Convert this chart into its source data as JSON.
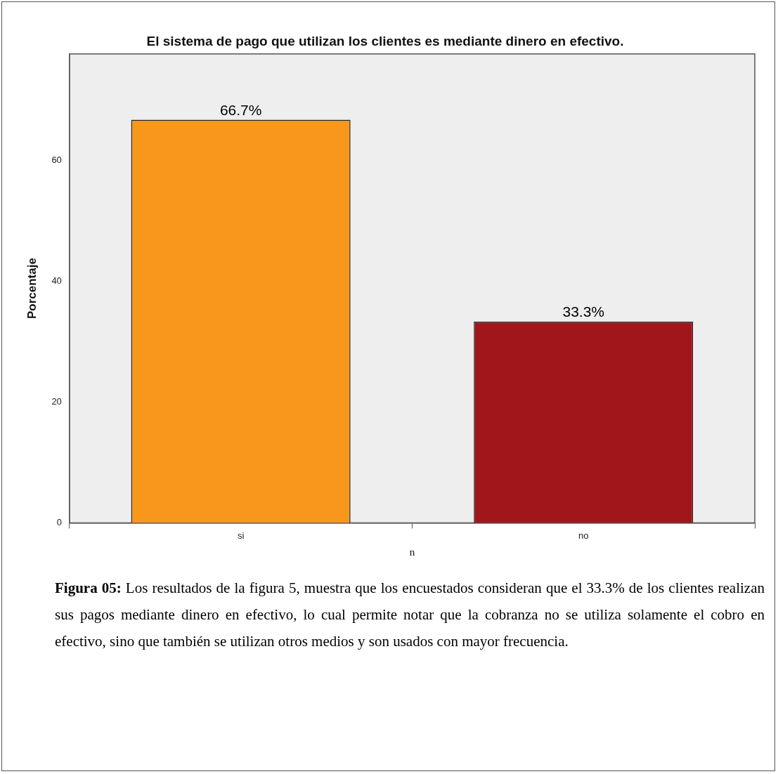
{
  "chart_data": {
    "type": "bar",
    "title": "El sistema de pago que utilizan los clientes es mediante dinero en efectivo.",
    "xlabel": "n",
    "ylabel": "Porcentaje",
    "categories": [
      "si",
      "no"
    ],
    "values": [
      66.7,
      33.3
    ],
    "colors": [
      "#f7981d",
      "#a0161b"
    ],
    "value_labels": [
      "66.7%",
      "33.3%"
    ],
    "ylim": [
      0,
      77.6
    ],
    "yticks": [
      0,
      20,
      40,
      60
    ],
    "grid": false,
    "legend": false,
    "annotations": [
      "Figura 05: Los resultados de la figura 5, muestra que los encuestados consideran que el 33.3% de los clientes realizan sus pagos mediante dinero en efectivo, lo cual permite notar que la cobranza no se utiliza solamente el cobro en efectivo, sino que también se utilizan otros medios y son usados con mayor frecuencia."
    ]
  }
}
